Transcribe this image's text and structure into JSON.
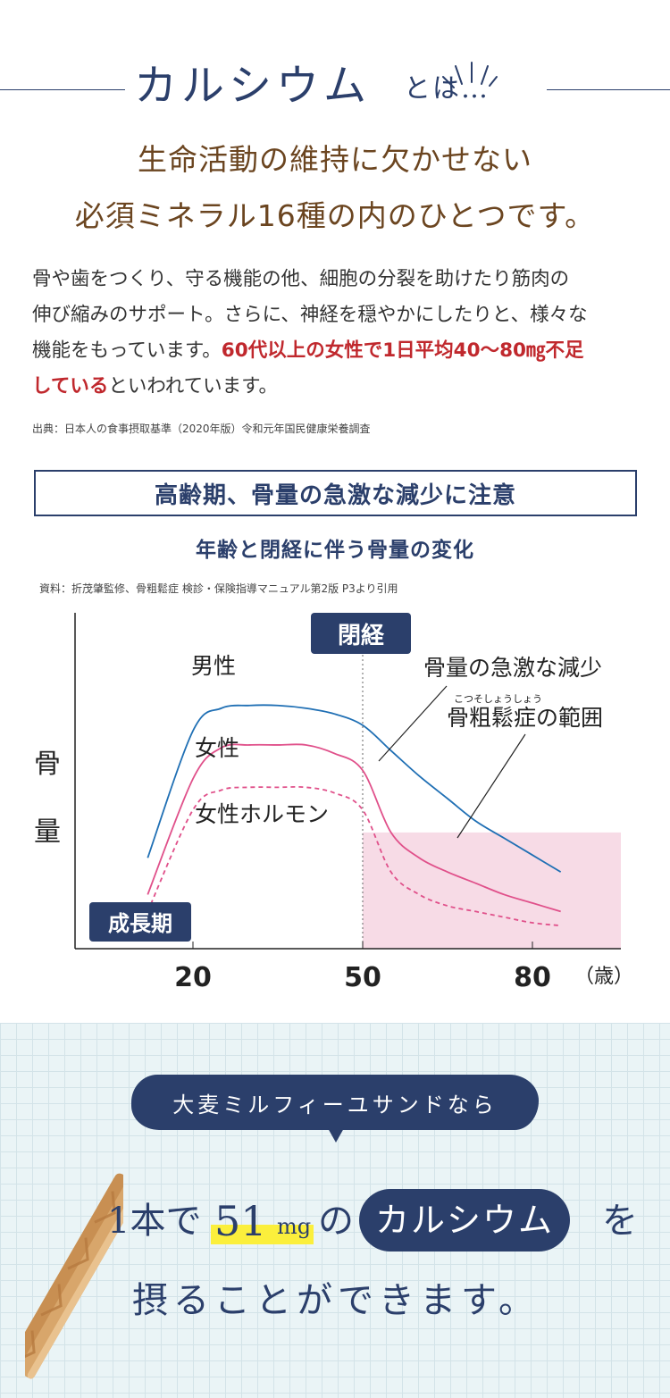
{
  "heading": {
    "main": "カルシウム",
    "suffix": "とは…"
  },
  "subtitle": {
    "line1": "生命活動の維持に欠かせない",
    "line2": "必須ミネラル16種の内のひとつです。"
  },
  "body": {
    "line1": "骨や歯をつくり、守る機能の他、細胞の分裂を助けたり筋肉の",
    "line2": "伸び縮みのサポート。さらに、神経を穏やかにしたりと、様々な",
    "line3_plain": "機能をもっています。",
    "line3_highlight": "60代以上の女性で1日平均40〜80㎎不足",
    "line4_highlight": "している",
    "line4_plain": "といわれています。",
    "source": "出典：日本人の食事摂取基準（2020年版）令和元年国民健康栄養調査"
  },
  "section": {
    "box_title": "高齢期、骨量の急激な減少に注意",
    "chart_title": "年齢と閉経に伴う骨量の変化",
    "chart_source": "資料：折茂肇監修、骨粗鬆症 検診・保険指導マニュアル第2版 P3より引用"
  },
  "chart_data": {
    "type": "line",
    "x": [
      12,
      20,
      25,
      30,
      35,
      40,
      45,
      50,
      55,
      60,
      65,
      70,
      75,
      80,
      85
    ],
    "xticks": [
      "20",
      "50",
      "80"
    ],
    "xunit": "（歳）",
    "ylabel": "骨量",
    "menopause_age": 50,
    "menopause_label": "閉経",
    "growth_label": "成長期",
    "osteoporosis_threshold": 0.38,
    "series": [
      {
        "name": "男性",
        "color": "#1f6fb4",
        "style": "solid",
        "values": [
          0.29,
          0.74,
          0.82,
          0.83,
          0.83,
          0.82,
          0.8,
          0.76,
          0.67,
          0.58,
          0.5,
          0.42,
          0.36,
          0.3,
          0.24
        ]
      },
      {
        "name": "女性",
        "color": "#e0508a",
        "style": "solid",
        "values": [
          0.16,
          0.57,
          0.68,
          0.69,
          0.69,
          0.69,
          0.66,
          0.6,
          0.38,
          0.29,
          0.24,
          0.2,
          0.16,
          0.13,
          0.1
        ]
      },
      {
        "name": "女性ホルモン",
        "color": "#e0508a",
        "style": "dashed",
        "values": [
          0.1,
          0.46,
          0.53,
          0.54,
          0.54,
          0.54,
          0.52,
          0.46,
          0.24,
          0.16,
          0.12,
          0.1,
          0.08,
          0.06,
          0.05
        ]
      }
    ],
    "annotations": {
      "decline": "骨量の急激な減少",
      "range": "骨粗鬆症の範囲",
      "range_ruby": "こつそしょうしょう"
    }
  },
  "promo": {
    "bubble": "大麦ミルフィーユサンドなら",
    "line1_a": "1本で",
    "line1_num": "51",
    "line1_unit": "mg",
    "line1_b": "の",
    "line1_pill": "カルシウム",
    "line1_c": "を",
    "line2": "摂ることができます。"
  },
  "colors": {
    "navy": "#2b3f6b",
    "brown": "#6b4520",
    "red": "#c0282d",
    "pink_fill": "#f7dbe6",
    "yellow": "#fbef3c"
  }
}
